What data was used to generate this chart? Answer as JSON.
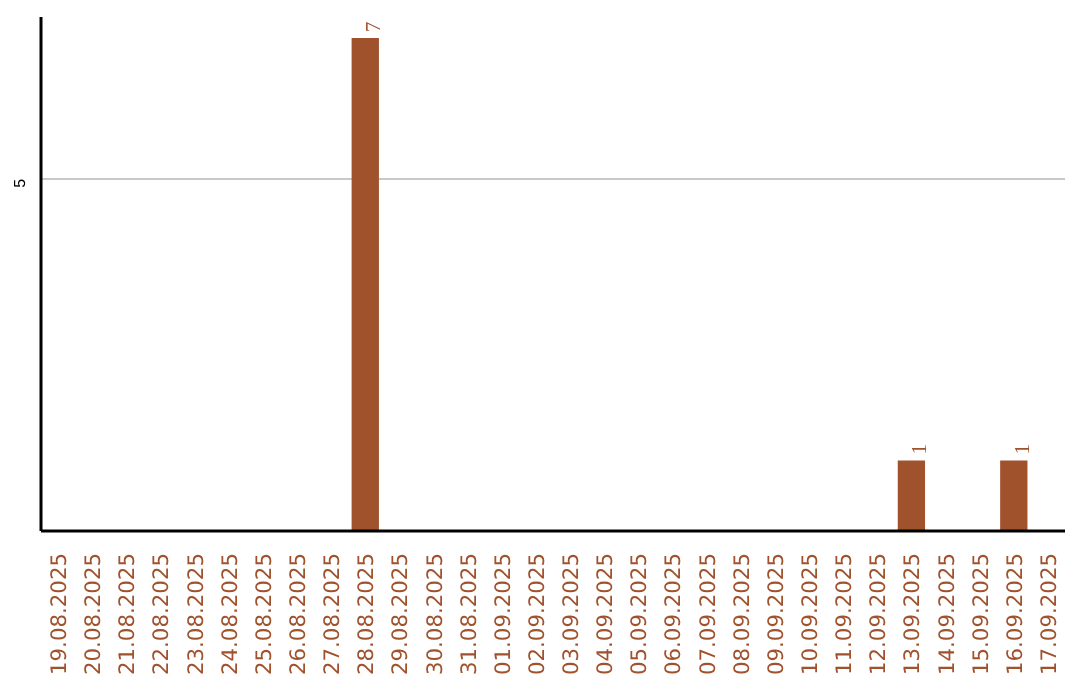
{
  "chart_data": {
    "type": "bar",
    "categories": [
      "19.08.2025",
      "20.08.2025",
      "21.08.2025",
      "22.08.2025",
      "23.08.2025",
      "24.08.2025",
      "25.08.2025",
      "26.08.2025",
      "27.08.2025",
      "28.08.2025",
      "29.08.2025",
      "30.08.2025",
      "31.08.2025",
      "01.09.2025",
      "02.09.2025",
      "03.09.2025",
      "04.09.2025",
      "05.09.2025",
      "06.09.2025",
      "07.09.2025",
      "08.09.2025",
      "09.09.2025",
      "10.09.2025",
      "11.09.2025",
      "12.09.2025",
      "13.09.2025",
      "14.09.2025",
      "15.09.2025",
      "16.09.2025",
      "17.09.2025"
    ],
    "values": [
      0,
      0,
      0,
      0,
      0,
      0,
      0,
      0,
      0,
      7,
      0,
      0,
      0,
      0,
      0,
      0,
      0,
      0,
      0,
      0,
      0,
      0,
      0,
      0,
      0,
      1,
      0,
      0,
      1,
      0
    ],
    "value_labels": [
      null,
      null,
      null,
      null,
      null,
      null,
      null,
      null,
      null,
      "7",
      null,
      null,
      null,
      null,
      null,
      null,
      null,
      null,
      null,
      null,
      null,
      null,
      null,
      null,
      null,
      "1",
      null,
      null,
      "1",
      null
    ],
    "color": "#a0522d",
    "ylim": [
      0,
      7.3
    ],
    "yticks": [
      5
    ],
    "grid": "y"
  }
}
